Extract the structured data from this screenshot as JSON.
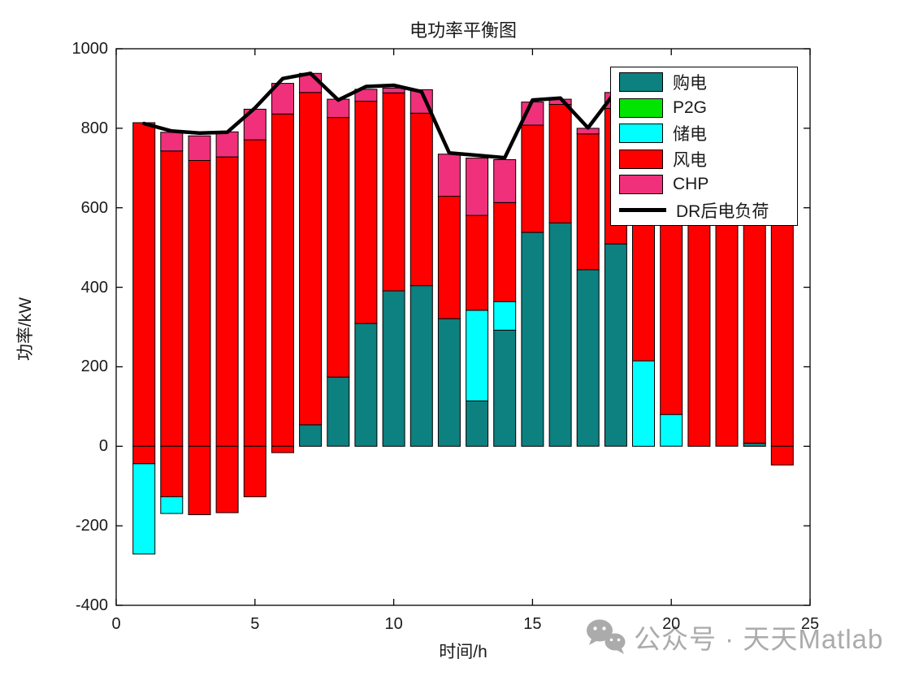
{
  "figure": {
    "title": "电功率平衡图"
  },
  "watermark": {
    "text": "公众号 · 天天Matlab",
    "icon": "wechat-icon",
    "color": "#ababab"
  },
  "chart_data": {
    "type": "bar",
    "subtype": "stacked-bars-with-line-overlay",
    "title": "电功率平衡图",
    "xlabel": "时间/h",
    "ylabel": "功率/kW",
    "xlim": [
      0,
      25
    ],
    "ylim": [
      -400,
      1000
    ],
    "xticks": [
      0,
      5,
      10,
      15,
      20,
      25
    ],
    "yticks": [
      1000,
      800,
      600,
      400,
      200,
      0,
      -200,
      -400
    ],
    "grid": false,
    "legend_position": "upper-right-inside",
    "bar_width_fraction": 0.79,
    "series_colors": {
      "buy": "#0D8080",
      "p2g": "#00E400",
      "storage": "#00FFFF",
      "wind": "#FF0000",
      "chp": "#F0307A",
      "line": "#000000"
    },
    "series_legend": [
      {
        "key": "buy",
        "label": "购电",
        "type": "patch"
      },
      {
        "key": "p2g",
        "label": "P2G",
        "type": "patch"
      },
      {
        "key": "storage",
        "label": "储电",
        "type": "patch"
      },
      {
        "key": "wind",
        "label": "风电",
        "type": "patch"
      },
      {
        "key": "chp",
        "label": "CHP",
        "type": "patch"
      },
      {
        "key": "line",
        "label": "DR后电负荷",
        "type": "line"
      }
    ],
    "bars": [
      {
        "x": 1,
        "segments": [
          {
            "s": "wind",
            "from": 0,
            "to": 814
          },
          {
            "s": "wind",
            "from": -44,
            "to": 0
          },
          {
            "s": "storage",
            "from": -271,
            "to": -44
          }
        ]
      },
      {
        "x": 2,
        "segments": [
          {
            "s": "wind",
            "from": 0,
            "to": 743
          },
          {
            "s": "chp",
            "from": 743,
            "to": 790
          },
          {
            "s": "wind",
            "from": -127,
            "to": 0
          },
          {
            "s": "storage",
            "from": -169,
            "to": -127
          }
        ]
      },
      {
        "x": 3,
        "segments": [
          {
            "s": "wind",
            "from": 0,
            "to": 719
          },
          {
            "s": "chp",
            "from": 719,
            "to": 781
          },
          {
            "s": "wind",
            "from": -172,
            "to": 0
          }
        ]
      },
      {
        "x": 4,
        "segments": [
          {
            "s": "wind",
            "from": 0,
            "to": 728
          },
          {
            "s": "chp",
            "from": 728,
            "to": 791
          },
          {
            "s": "wind",
            "from": -167,
            "to": 0
          }
        ]
      },
      {
        "x": 5,
        "segments": [
          {
            "s": "wind",
            "from": 0,
            "to": 771
          },
          {
            "s": "chp",
            "from": 771,
            "to": 848
          },
          {
            "s": "wind",
            "from": -127,
            "to": 0
          }
        ]
      },
      {
        "x": 6,
        "segments": [
          {
            "s": "wind",
            "from": 0,
            "to": 836
          },
          {
            "s": "chp",
            "from": 836,
            "to": 913
          },
          {
            "s": "wind",
            "from": -16,
            "to": 0
          }
        ]
      },
      {
        "x": 7,
        "segments": [
          {
            "s": "buy",
            "from": 0,
            "to": 54
          },
          {
            "s": "wind",
            "from": 54,
            "to": 890
          },
          {
            "s": "chp",
            "from": 890,
            "to": 938
          }
        ]
      },
      {
        "x": 8,
        "segments": [
          {
            "s": "buy",
            "from": 0,
            "to": 174
          },
          {
            "s": "wind",
            "from": 174,
            "to": 827
          },
          {
            "s": "chp",
            "from": 827,
            "to": 873
          }
        ]
      },
      {
        "x": 9,
        "segments": [
          {
            "s": "buy",
            "from": 0,
            "to": 309
          },
          {
            "s": "wind",
            "from": 309,
            "to": 868
          },
          {
            "s": "chp",
            "from": 868,
            "to": 898
          }
        ]
      },
      {
        "x": 10,
        "segments": [
          {
            "s": "buy",
            "from": 0,
            "to": 391
          },
          {
            "s": "wind",
            "from": 391,
            "to": 889
          },
          {
            "s": "chp",
            "from": 889,
            "to": 901
          }
        ]
      },
      {
        "x": 11,
        "segments": [
          {
            "s": "buy",
            "from": 0,
            "to": 404
          },
          {
            "s": "wind",
            "from": 404,
            "to": 838
          },
          {
            "s": "chp",
            "from": 838,
            "to": 897
          }
        ]
      },
      {
        "x": 12,
        "segments": [
          {
            "s": "buy",
            "from": 0,
            "to": 321
          },
          {
            "s": "wind",
            "from": 321,
            "to": 629
          },
          {
            "s": "chp",
            "from": 629,
            "to": 735
          }
        ]
      },
      {
        "x": 13,
        "segments": [
          {
            "s": "buy",
            "from": 0,
            "to": 114
          },
          {
            "s": "storage",
            "from": 114,
            "to": 342
          },
          {
            "s": "wind",
            "from": 342,
            "to": 581
          },
          {
            "s": "chp",
            "from": 581,
            "to": 725
          }
        ]
      },
      {
        "x": 14,
        "segments": [
          {
            "s": "buy",
            "from": 0,
            "to": 292
          },
          {
            "s": "storage",
            "from": 292,
            "to": 364
          },
          {
            "s": "wind",
            "from": 364,
            "to": 613
          },
          {
            "s": "chp",
            "from": 613,
            "to": 721
          }
        ]
      },
      {
        "x": 15,
        "segments": [
          {
            "s": "buy",
            "from": 0,
            "to": 538
          },
          {
            "s": "wind",
            "from": 538,
            "to": 808
          },
          {
            "s": "chp",
            "from": 808,
            "to": 866
          }
        ]
      },
      {
        "x": 16,
        "segments": [
          {
            "s": "buy",
            "from": 0,
            "to": 562
          },
          {
            "s": "wind",
            "from": 562,
            "to": 860
          },
          {
            "s": "chp",
            "from": 860,
            "to": 873
          }
        ]
      },
      {
        "x": 17,
        "segments": [
          {
            "s": "buy",
            "from": 0,
            "to": 444
          },
          {
            "s": "wind",
            "from": 444,
            "to": 786
          },
          {
            "s": "chp",
            "from": 786,
            "to": 800
          }
        ]
      },
      {
        "x": 18,
        "segments": [
          {
            "s": "buy",
            "from": 0,
            "to": 509
          },
          {
            "s": "wind",
            "from": 509,
            "to": 850
          },
          {
            "s": "chp",
            "from": 850,
            "to": 890
          }
        ]
      },
      {
        "x": 19,
        "segments": [
          {
            "s": "storage",
            "from": 0,
            "to": 215
          },
          {
            "s": "wind",
            "from": 215,
            "to": 850
          }
        ]
      },
      {
        "x": 20,
        "segments": [
          {
            "s": "storage",
            "from": 0,
            "to": 80
          },
          {
            "s": "wind",
            "from": 80,
            "to": 830
          }
        ]
      },
      {
        "x": 21,
        "segments": [
          {
            "s": "wind",
            "from": 0,
            "to": 800
          }
        ]
      },
      {
        "x": 22,
        "segments": [
          {
            "s": "wind",
            "from": 0,
            "to": 780
          }
        ]
      },
      {
        "x": 23,
        "segments": [
          {
            "s": "buy",
            "from": 0,
            "to": 8
          },
          {
            "s": "wind",
            "from": 8,
            "to": 760
          }
        ]
      },
      {
        "x": 24,
        "segments": [
          {
            "s": "wind",
            "from": 0,
            "to": 700
          },
          {
            "s": "wind",
            "from": -47,
            "to": 0
          }
        ]
      }
    ],
    "line": {
      "name": "DR后电负荷",
      "x": [
        1,
        2,
        3,
        4,
        5,
        6,
        7,
        8,
        9,
        10,
        11,
        12,
        13,
        14,
        15,
        16,
        17,
        18,
        19
      ],
      "y": [
        812,
        793,
        788,
        790,
        851,
        925,
        938,
        871,
        905,
        908,
        892,
        738,
        732,
        726,
        871,
        876,
        801,
        893,
        900
      ]
    }
  }
}
